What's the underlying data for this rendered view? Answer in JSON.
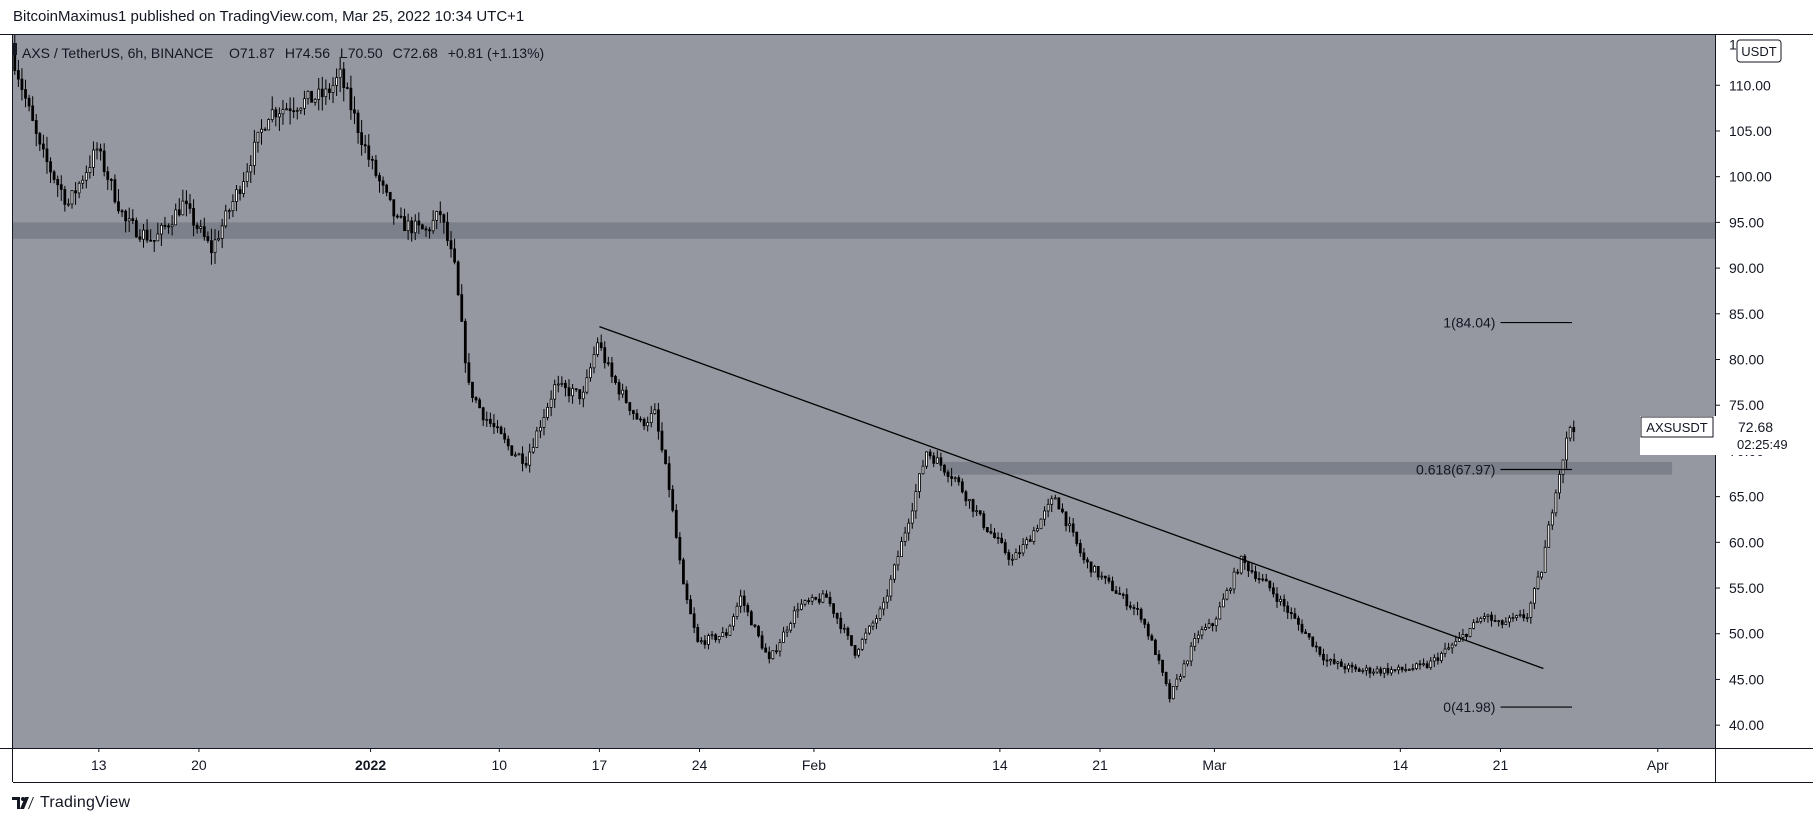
{
  "header": {
    "published": "BitcoinMaximus1 published on TradingView.com, Mar 25, 2022 10:34 UTC+1"
  },
  "legend": {
    "symbol": "AXS / TetherUS, 6h, BINANCE",
    "o_label": "O",
    "o_value": "71.87",
    "h_label": "H",
    "h_value": "74.56",
    "l_label": "L",
    "l_value": "70.50",
    "c_label": "C",
    "c_value": "72.68",
    "change": "+0.81 (+1.13%)"
  },
  "currency_badge": "USDT",
  "price_tag": {
    "symbol": "AXSUSDT",
    "price": "72.68",
    "countdown": "02:25:49"
  },
  "footer": {
    "brand": "TradingView"
  },
  "colors": {
    "pane_bg": "#9598a1",
    "candle": "#000000",
    "zone": "#787b86",
    "axis_text": "#131722"
  },
  "chart_data": {
    "type": "candlestick",
    "title": "AXS / TetherUS, 6h, BINANCE",
    "ylabel": "USDT",
    "ylim": [
      37.5,
      115.5
    ],
    "y_ticks": [
      "40.00",
      "45.00",
      "50.00",
      "55.00",
      "60.00",
      "65.00",
      "70.00",
      "75.00",
      "80.00",
      "85.00",
      "90.00",
      "95.00",
      "100.00",
      "105.00",
      "110.00"
    ],
    "y_top_partial": "115.00",
    "x_ticks": [
      "13",
      "20",
      "2022",
      "10",
      "17",
      "24",
      "Feb",
      "14",
      "21",
      "Mar",
      "14",
      "21",
      "Apr"
    ],
    "x_tick_dates": [
      "2021-12-13",
      "2021-12-20",
      "2022-01-01",
      "2022-01-10",
      "2022-01-17",
      "2022-01-24",
      "2022-02-01",
      "2022-02-14",
      "2022-02-21",
      "2022-03-01",
      "2022-03-14",
      "2022-03-21",
      "2022-04-01"
    ],
    "x_range": [
      "2021-12-07",
      "2022-04-05"
    ],
    "price_path": [
      [
        "2021-12-07",
        114
      ],
      [
        "2021-12-09",
        103
      ],
      [
        "2021-12-11",
        97
      ],
      [
        "2021-12-13",
        103
      ],
      [
        "2021-12-15",
        95
      ],
      [
        "2021-12-17",
        93
      ],
      [
        "2021-12-19",
        97
      ],
      [
        "2021-12-21",
        92
      ],
      [
        "2021-12-23",
        99
      ],
      [
        "2021-12-25",
        107
      ],
      [
        "2021-12-27",
        108
      ],
      [
        "2021-12-29",
        109
      ],
      [
        "2021-12-30",
        111
      ],
      [
        "2022-01-01",
        102
      ],
      [
        "2022-01-03",
        95
      ],
      [
        "2022-01-05",
        94
      ],
      [
        "2022-01-06",
        96
      ],
      [
        "2022-01-07",
        90
      ],
      [
        "2022-01-08",
        77
      ],
      [
        "2022-01-09",
        74
      ],
      [
        "2022-01-11",
        70
      ],
      [
        "2022-01-12",
        69
      ],
      [
        "2022-01-14",
        77
      ],
      [
        "2022-01-16",
        76
      ],
      [
        "2022-01-17",
        82
      ],
      [
        "2022-01-18",
        78
      ],
      [
        "2022-01-20",
        73
      ],
      [
        "2022-01-21",
        74
      ],
      [
        "2022-01-22",
        66
      ],
      [
        "2022-01-23",
        55
      ],
      [
        "2022-01-24",
        49
      ],
      [
        "2022-01-26",
        50
      ],
      [
        "2022-01-27",
        54
      ],
      [
        "2022-01-29",
        47
      ],
      [
        "2022-01-31",
        53
      ],
      [
        "2022-02-02",
        54
      ],
      [
        "2022-02-04",
        48
      ],
      [
        "2022-02-06",
        53
      ],
      [
        "2022-02-08",
        64
      ],
      [
        "2022-02-09",
        70
      ],
      [
        "2022-02-11",
        67
      ],
      [
        "2022-02-13",
        62
      ],
      [
        "2022-02-15",
        58
      ],
      [
        "2022-02-16",
        60
      ],
      [
        "2022-02-18",
        65
      ],
      [
        "2022-02-20",
        58
      ],
      [
        "2022-02-22",
        55
      ],
      [
        "2022-02-24",
        52
      ],
      [
        "2022-02-25",
        48
      ],
      [
        "2022-02-26",
        43
      ],
      [
        "2022-02-28",
        50
      ],
      [
        "2022-03-01",
        51
      ],
      [
        "2022-03-03",
        58
      ],
      [
        "2022-03-05",
        55
      ],
      [
        "2022-03-07",
        51
      ],
      [
        "2022-03-09",
        47
      ],
      [
        "2022-03-11",
        46
      ],
      [
        "2022-03-14",
        46
      ],
      [
        "2022-03-16",
        46.5
      ],
      [
        "2022-03-18",
        49
      ],
      [
        "2022-03-20",
        52
      ],
      [
        "2022-03-21",
        51
      ],
      [
        "2022-03-23",
        52
      ],
      [
        "2022-03-24",
        57
      ],
      [
        "2022-03-25",
        66
      ],
      [
        "2022-03-26",
        72.7
      ]
    ],
    "resistance_zones": [
      {
        "low": 93.2,
        "high": 95.0,
        "from": "2021-12-07",
        "to": "2022-04-05"
      },
      {
        "low": 67.4,
        "high": 68.8,
        "from": "2022-02-10",
        "to": "2022-04-02"
      }
    ],
    "trendline": {
      "from": [
        "2022-01-17",
        83.6
      ],
      "to": [
        "2022-03-24",
        46.2
      ]
    },
    "fib_levels": [
      {
        "label": "1(84.04)",
        "value": 84.04
      },
      {
        "label": "0.618(67.97)",
        "value": 67.97
      },
      {
        "label": "0(41.98)",
        "value": 41.98
      }
    ],
    "fib_x_range": [
      "2022-03-21",
      "2022-03-26"
    ],
    "last_price": 72.68
  }
}
